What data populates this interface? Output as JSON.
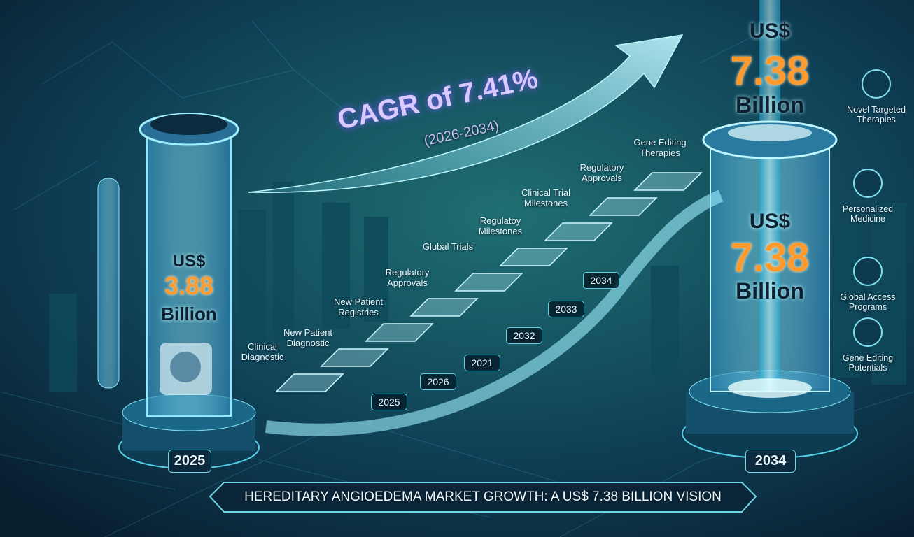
{
  "cagr": {
    "label": "CAGR of 7.41%",
    "period": "(2026-2034)"
  },
  "left_value": {
    "currency": "US$",
    "amount": "3.88",
    "unit": "Billion",
    "year": "2025"
  },
  "right_value": {
    "top": {
      "currency": "US$",
      "amount": "7.38",
      "unit": "Billion"
    },
    "middle": {
      "currency": "US$",
      "amount": "7.38",
      "unit": "Billion"
    },
    "year": "2034"
  },
  "steps": [
    "Clinical Diagnostic",
    "New Patient Diagnostic",
    "New Patient Registries",
    "Regulatory Approvals",
    "Glubal Trials",
    "Regulatoy Milestones",
    "Clinical Trial Milestones",
    "Regulatory Approvals",
    "Gene Editing Therapies"
  ],
  "step_years": [
    "2025",
    "2026",
    "2021",
    "2032",
    "2033",
    "2034"
  ],
  "features": [
    "Novel Targeted Therapies",
    "Personalized Medicine",
    "Global Access Programs",
    "Gene Editing Potentials"
  ],
  "footer": {
    "title": "HEREDITARY ANGIOEDEMA MARKET GROWTH: A US$ 7.38 BILLION VISION"
  }
}
